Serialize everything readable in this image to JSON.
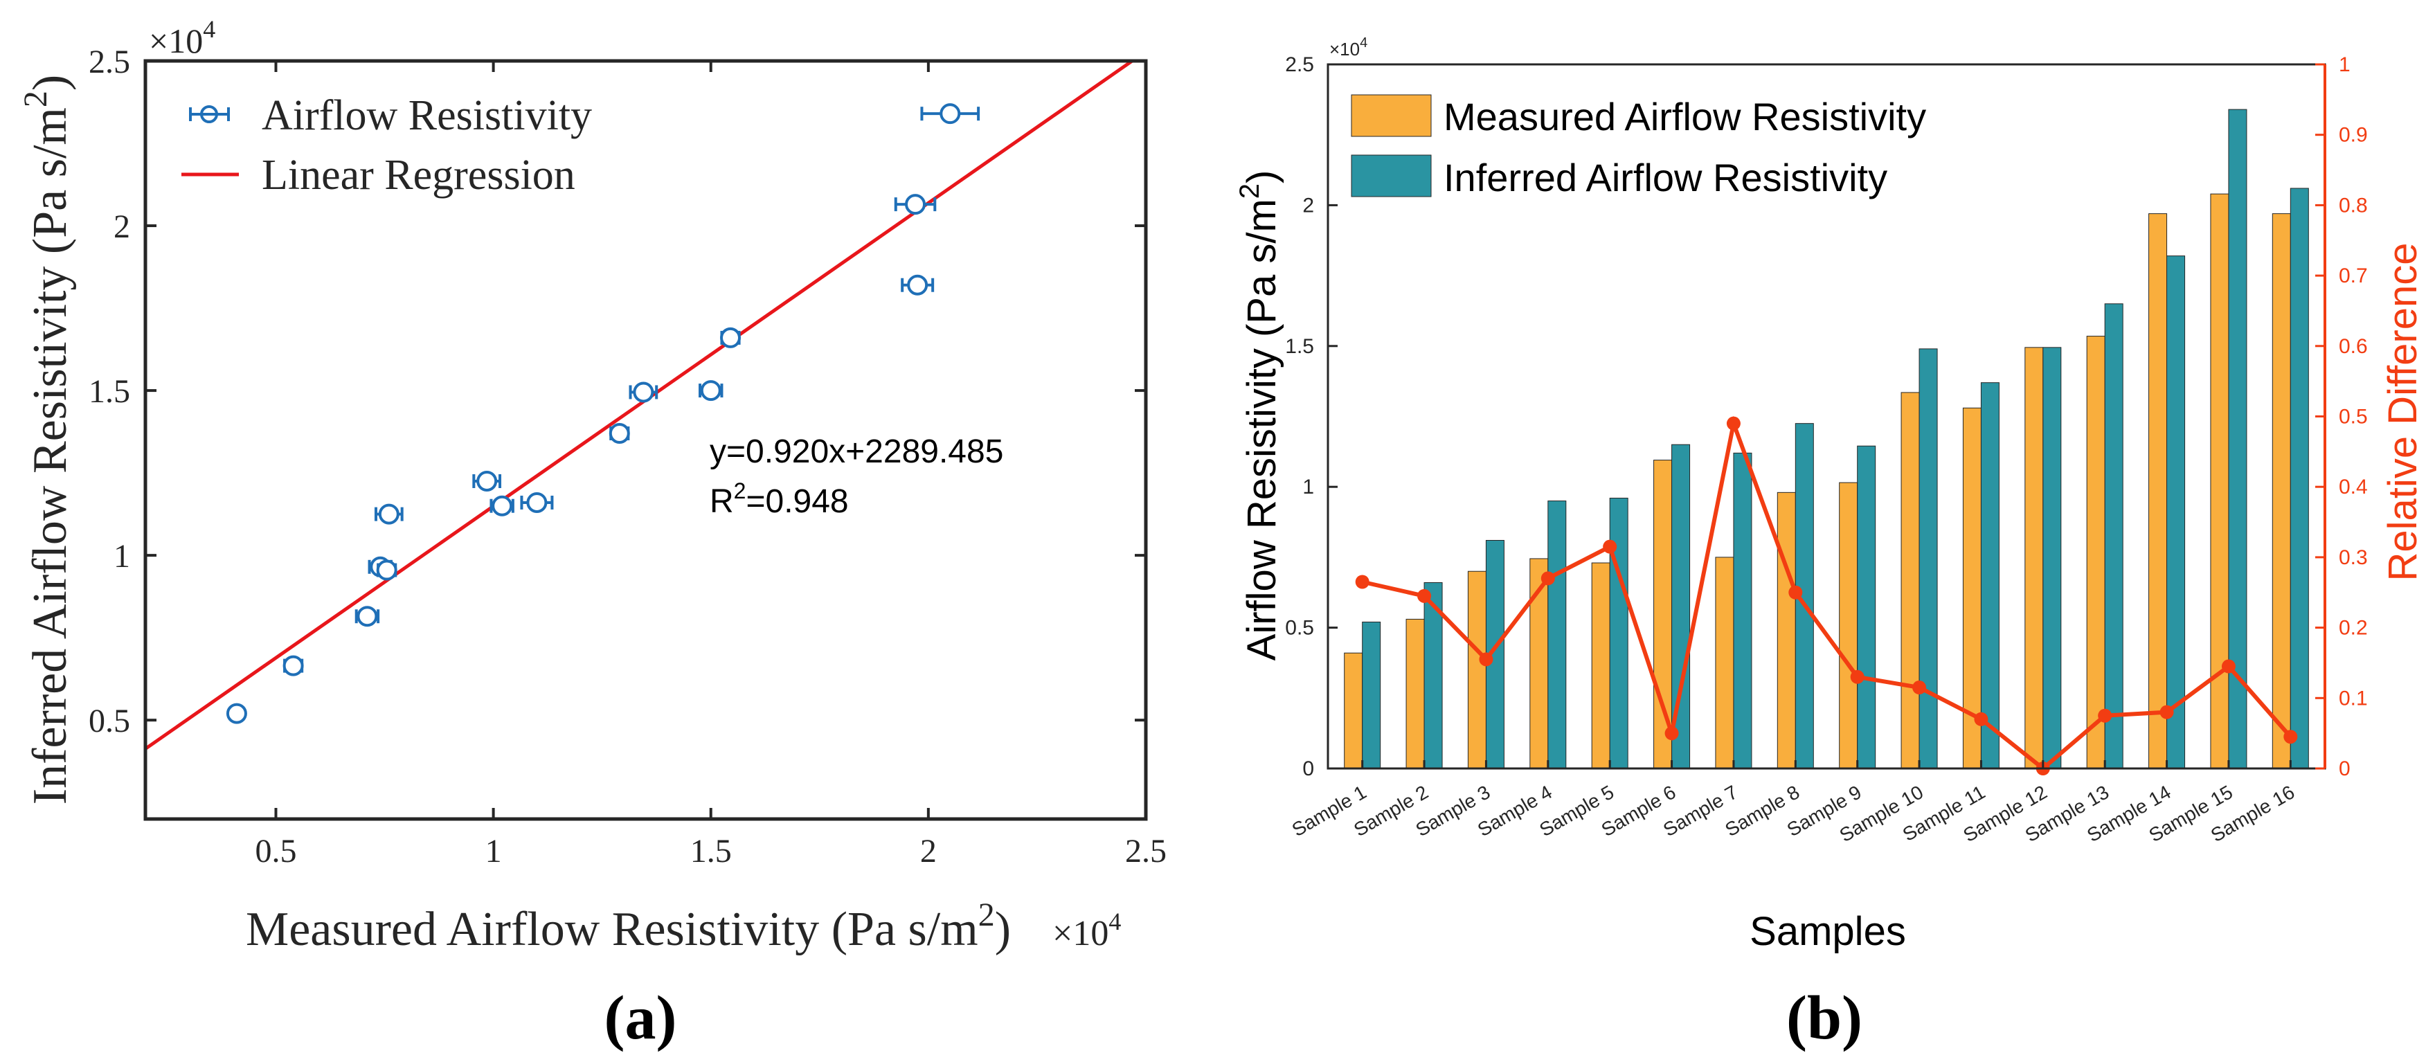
{
  "chart_data": [
    {
      "panel": "a",
      "type": "scatter",
      "panel_label": "(a)",
      "xlabel": "Measured Airflow Resistivity (Pa s/m",
      "xlabel_sup": "2",
      "xlabel_close": ")",
      "ylabel": "Inferred Airflow Resistivity (Pa s/m",
      "ylabel_sup": "2",
      "ylabel_close": ")",
      "x_exponent_base": "×10",
      "x_exponent_power": "4",
      "y_exponent_base": "×10",
      "y_exponent_power": "4",
      "xlim": [
        0.2,
        2.5
      ],
      "ylim": [
        0.2,
        2.5
      ],
      "xticks": [
        0.5,
        1,
        1.5,
        2,
        2.5
      ],
      "xtick_labels": [
        "0.5",
        "1",
        "1.5",
        "2",
        "2.5"
      ],
      "yticks": [
        0.5,
        1,
        1.5,
        2,
        2.5
      ],
      "ytick_labels": [
        "0.5",
        "1",
        "1.5",
        "2",
        "2.5"
      ],
      "legend": [
        {
          "label": "Airflow Resistivity",
          "color": "#1f6fb7",
          "marker": "circle-errorbar"
        },
        {
          "label": "Linear Regression",
          "color": "#e8161b",
          "marker": "line"
        }
      ],
      "equation": "y=0.920x+2289.485",
      "r2_prefix": "R",
      "r2_sup": "2",
      "r2_value": "=0.948",
      "regression": {
        "slope": 0.92,
        "intercept": 0.2289485
      },
      "series": [
        {
          "name": "Airflow Resistivity",
          "points": [
            {
              "x": 0.41,
              "y": 0.52,
              "xerr": 0.015
            },
            {
              "x": 0.54,
              "y": 0.665,
              "xerr": 0.02
            },
            {
              "x": 0.71,
              "y": 0.815,
              "xerr": 0.025
            },
            {
              "x": 0.74,
              "y": 0.965,
              "xerr": 0.025
            },
            {
              "x": 0.755,
              "y": 0.955,
              "xerr": 0.02
            },
            {
              "x": 0.76,
              "y": 1.125,
              "xerr": 0.03
            },
            {
              "x": 0.985,
              "y": 1.225,
              "xerr": 0.03
            },
            {
              "x": 1.02,
              "y": 1.15,
              "xerr": 0.025
            },
            {
              "x": 1.1,
              "y": 1.16,
              "xerr": 0.035
            },
            {
              "x": 1.29,
              "y": 1.37,
              "xerr": 0.02
            },
            {
              "x": 1.345,
              "y": 1.495,
              "xerr": 0.03
            },
            {
              "x": 1.5,
              "y": 1.5,
              "xerr": 0.025
            },
            {
              "x": 1.545,
              "y": 1.66,
              "xerr": 0.02
            },
            {
              "x": 1.975,
              "y": 1.82,
              "xerr": 0.035
            },
            {
              "x": 1.97,
              "y": 2.065,
              "xerr": 0.045
            },
            {
              "x": 2.05,
              "y": 2.34,
              "xerr": 0.065
            }
          ]
        }
      ]
    },
    {
      "panel": "b",
      "type": "bar",
      "panel_label": "(b)",
      "xlabel": "Samples",
      "ylabel": "Airflow Resistivity (Pa s/m",
      "ylabel_sup": "2",
      "ylabel_close": ")",
      "y2label": "Relative Difference",
      "y_exponent_base": "×10",
      "y_exponent_power": "4",
      "ylim": [
        0,
        2.5
      ],
      "yticks": [
        0,
        0.5,
        1,
        1.5,
        2,
        2.5
      ],
      "ytick_labels": [
        "0",
        "0.5",
        "1",
        "1.5",
        "2",
        "2.5"
      ],
      "y2lim": [
        0,
        1
      ],
      "y2ticks": [
        0,
        0.1,
        0.2,
        0.3,
        0.4,
        0.5,
        0.6,
        0.7,
        0.8,
        0.9,
        1
      ],
      "y2tick_labels": [
        "0",
        "0.1",
        "0.2",
        "0.3",
        "0.4",
        "0.5",
        "0.6",
        "0.7",
        "0.8",
        "0.9",
        "1"
      ],
      "categories": [
        "Sample 1",
        "Sample 2",
        "Sample 3",
        "Sample 4",
        "Sample 5",
        "Sample 6",
        "Sample 7",
        "Sample 8",
        "Sample 9",
        "Sample 10",
        "Sample 11",
        "Sample 12",
        "Sample 13",
        "Sample 14",
        "Sample 15",
        "Sample 16"
      ],
      "series": [
        {
          "name": "Measured Airflow Resistivity",
          "color": "#f9ae3d",
          "axis": "left",
          "values": [
            0.41,
            0.53,
            0.7,
            0.745,
            0.73,
            1.095,
            0.75,
            0.98,
            1.015,
            1.335,
            1.28,
            1.495,
            1.535,
            1.97,
            2.04,
            1.97
          ]
        },
        {
          "name": "Inferred Airflow Resistivity",
          "color": "#2a94a2",
          "axis": "left",
          "values": [
            0.52,
            0.66,
            0.81,
            0.95,
            0.96,
            1.15,
            1.12,
            1.225,
            1.145,
            1.49,
            1.37,
            1.495,
            1.65,
            1.82,
            2.34,
            2.06
          ]
        },
        {
          "name": "Relative Difference",
          "color": "#f23d12",
          "axis": "right",
          "type": "line",
          "values": [
            0.265,
            0.245,
            0.155,
            0.27,
            0.315,
            0.05,
            0.49,
            0.25,
            0.13,
            0.115,
            0.07,
            0.0,
            0.075,
            0.08,
            0.145,
            0.045
          ]
        }
      ],
      "legend": [
        {
          "label": "Measured Airflow Resistivity",
          "color": "#f9ae3d"
        },
        {
          "label": "Inferred Airflow Resistivity",
          "color": "#2a94a2"
        }
      ]
    }
  ]
}
